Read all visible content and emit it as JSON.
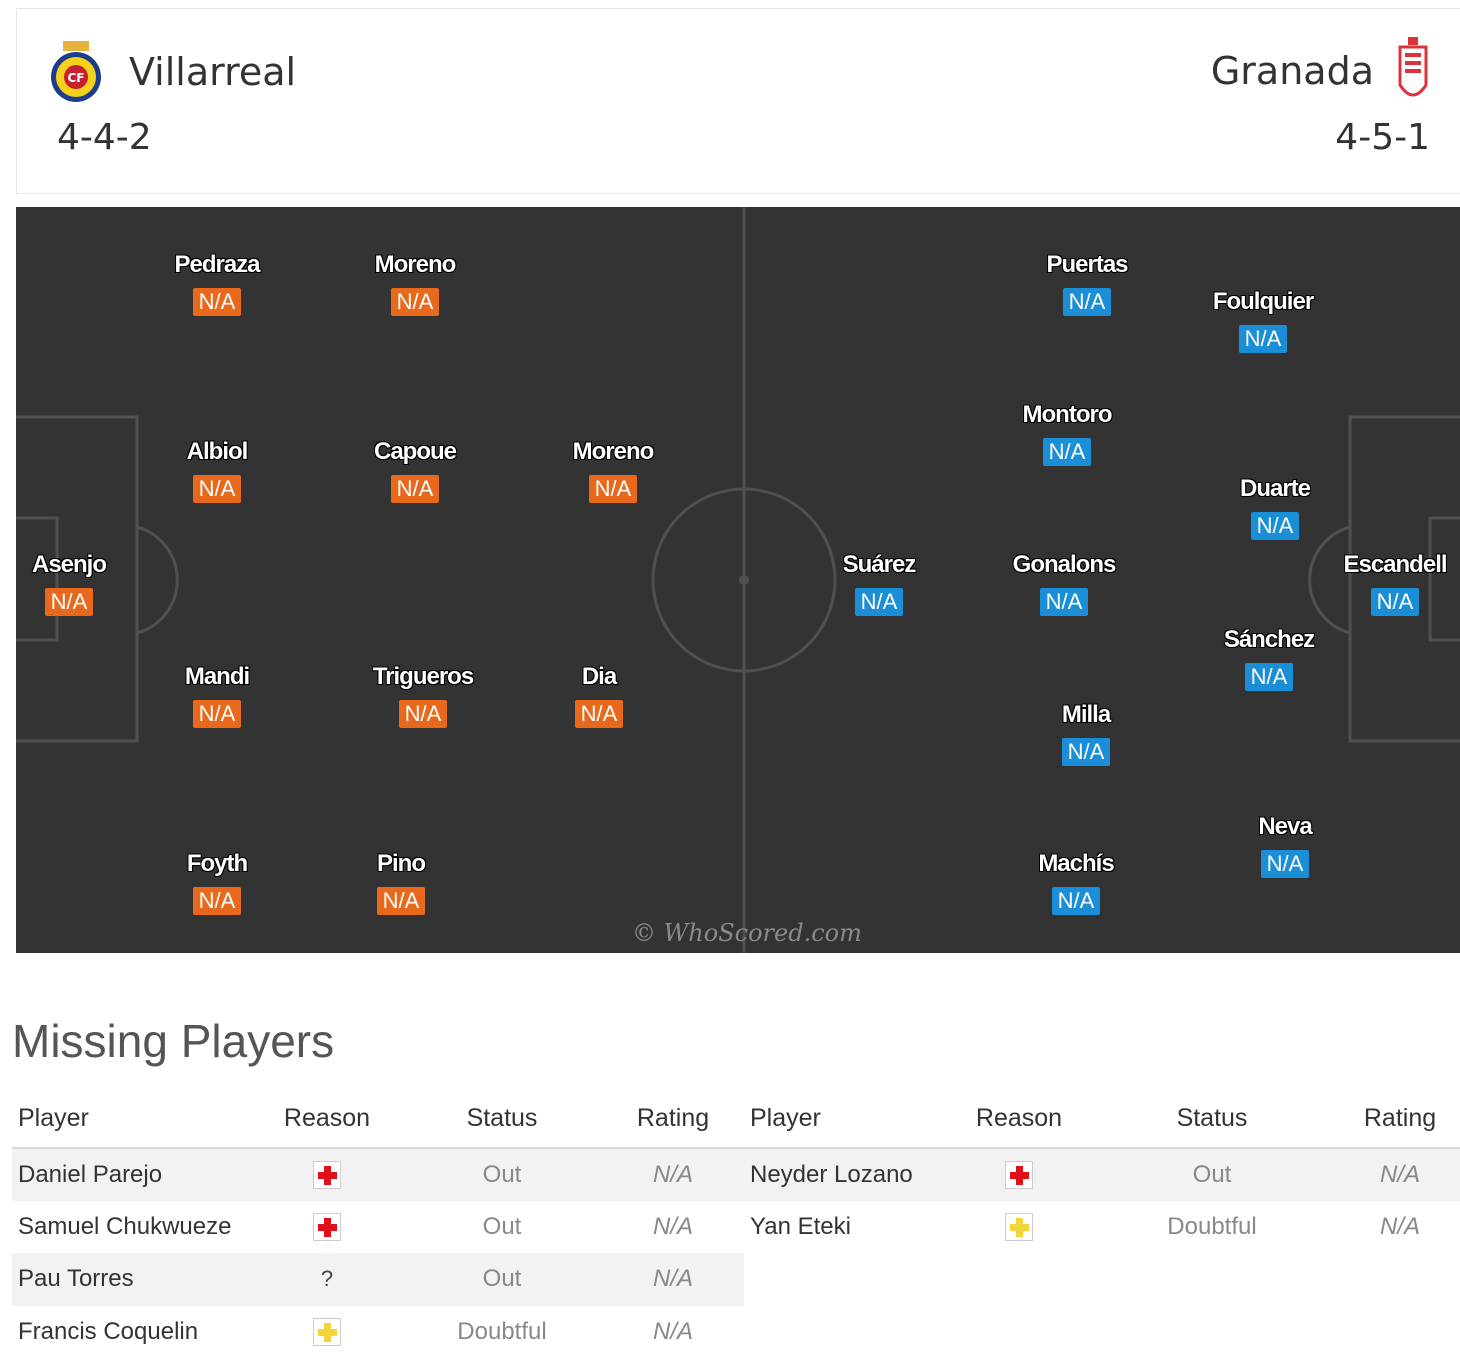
{
  "header": {
    "home": {
      "name": "Villarreal",
      "formation": "4-4-2",
      "crest": "villarreal-crest-icon"
    },
    "away": {
      "name": "Granada",
      "formation": "4-5-1",
      "crest": "granada-crest-icon"
    }
  },
  "pitch": {
    "watermark": "© WhoScored.com",
    "home_players": [
      {
        "name": "Pedraza",
        "rating": "N/A"
      },
      {
        "name": "Moreno",
        "rating": "N/A"
      },
      {
        "name": "Albiol",
        "rating": "N/A"
      },
      {
        "name": "Capoue",
        "rating": "N/A"
      },
      {
        "name": "Moreno",
        "rating": "N/A"
      },
      {
        "name": "Asenjo",
        "rating": "N/A"
      },
      {
        "name": "Mandi",
        "rating": "N/A"
      },
      {
        "name": "Trigueros",
        "rating": "N/A"
      },
      {
        "name": "Dia",
        "rating": "N/A"
      },
      {
        "name": "Foyth",
        "rating": "N/A"
      },
      {
        "name": "Pino",
        "rating": "N/A"
      }
    ],
    "away_players": [
      {
        "name": "Puertas",
        "rating": "N/A"
      },
      {
        "name": "Foulquier",
        "rating": "N/A"
      },
      {
        "name": "Montoro",
        "rating": "N/A"
      },
      {
        "name": "Duarte",
        "rating": "N/A"
      },
      {
        "name": "Suárez",
        "rating": "N/A"
      },
      {
        "name": "Gonalons",
        "rating": "N/A"
      },
      {
        "name": "Escandell",
        "rating": "N/A"
      },
      {
        "name": "Sánchez",
        "rating": "N/A"
      },
      {
        "name": "Milla",
        "rating": "N/A"
      },
      {
        "name": "Neva",
        "rating": "N/A"
      },
      {
        "name": "Machís",
        "rating": "N/A"
      }
    ]
  },
  "missing": {
    "title": "Missing Players",
    "columns": [
      "Player",
      "Reason",
      "Status",
      "Rating"
    ],
    "home": [
      {
        "player": "Daniel Parejo",
        "reason": "injury-icon",
        "status": "Out",
        "rating": "N/A"
      },
      {
        "player": "Samuel Chukwueze",
        "reason": "injury-icon",
        "status": "Out",
        "rating": "N/A"
      },
      {
        "player": "Pau Torres",
        "reason": "?",
        "status": "Out",
        "rating": "N/A"
      },
      {
        "player": "Francis Coquelin",
        "reason": "doubtful-icon",
        "status": "Doubtful",
        "rating": "N/A"
      }
    ],
    "away": [
      {
        "player": "Neyder Lozano",
        "reason": "injury-icon",
        "status": "Out",
        "rating": "N/A"
      },
      {
        "player": "Yan Eteki",
        "reason": "doubtful-icon",
        "status": "Doubtful",
        "rating": "N/A"
      }
    ]
  },
  "colors": {
    "home_rating": "#e8691b",
    "away_rating": "#1a8ed6",
    "pitch": "#333333"
  }
}
